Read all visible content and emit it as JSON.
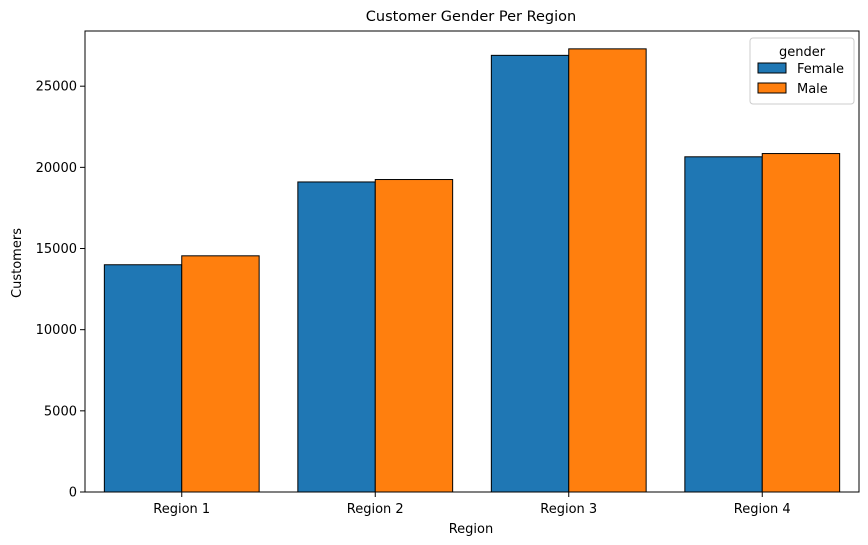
{
  "chart_data": {
    "type": "bar",
    "title": "Customer Gender Per Region",
    "xlabel": "Region",
    "ylabel": "Customers",
    "categories": [
      "Region 1",
      "Region 2",
      "Region 3",
      "Region 4"
    ],
    "series": [
      {
        "name": "Female",
        "color": "#1f77b4",
        "values": [
          14000,
          19100,
          26900,
          20650
        ]
      },
      {
        "name": "Male",
        "color": "#ff7f0e",
        "values": [
          14550,
          19250,
          27300,
          20850
        ]
      }
    ],
    "ylim": [
      0,
      28400
    ],
    "yticks": [
      0,
      5000,
      10000,
      15000,
      20000,
      25000
    ],
    "legend": {
      "title": "gender",
      "position": "top-right"
    },
    "grid": false
  }
}
